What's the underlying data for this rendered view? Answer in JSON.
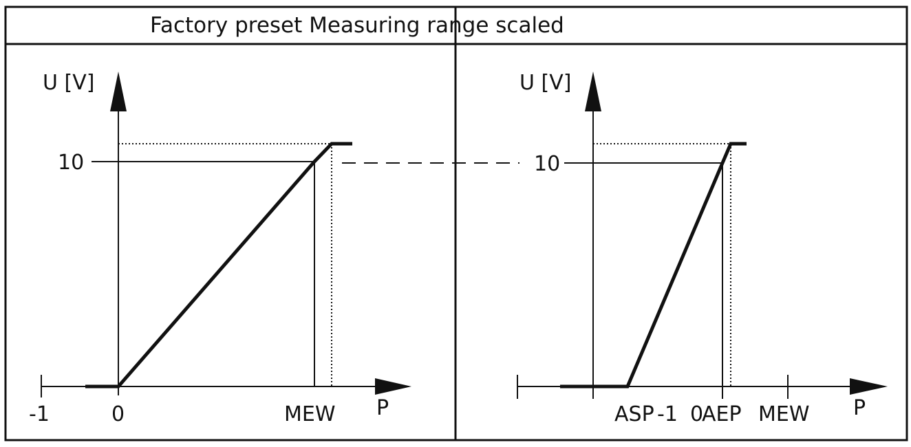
{
  "header": {
    "title": "Factory preset Measuring range scaled"
  },
  "left_panel": {
    "y_axis_label": "U [V]",
    "y_tick": "10",
    "x_labels": [
      "-1",
      "0",
      "MEW"
    ],
    "x_axis_label": "P"
  },
  "right_panel": {
    "y_axis_label": "U [V]",
    "y_tick": "10",
    "x_labels": [
      "ASP",
      "-1",
      "0",
      "AEP",
      "MEW"
    ],
    "x_axis_label": "P"
  }
}
